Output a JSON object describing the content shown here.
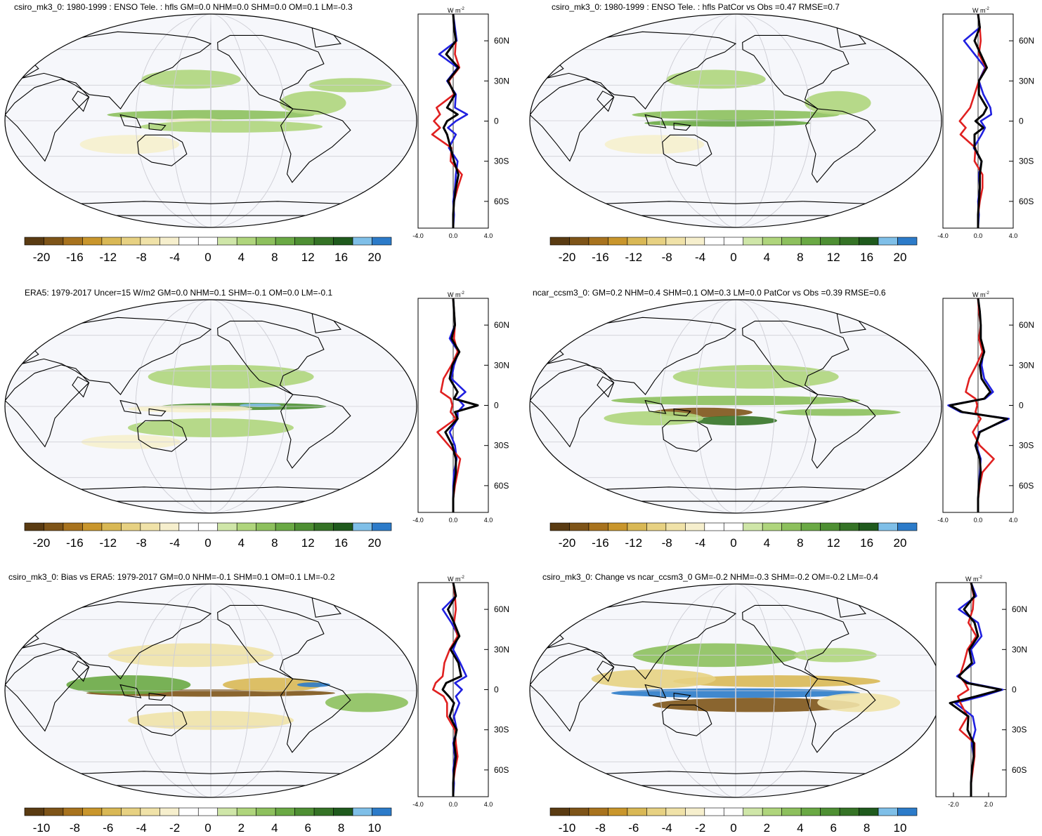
{
  "colors": {
    "scale": [
      "#5a3b12",
      "#7e5418",
      "#a8731e",
      "#c9962c",
      "#d9b855",
      "#e7d182",
      "#f0e2a8",
      "#f6efcd",
      "#f7f8fc",
      "#ffffff",
      "#cfe6a8",
      "#afd57c",
      "#8dc05d",
      "#6aa944",
      "#4e8f33",
      "#357326",
      "#1f5a1d",
      "#7fbfe8",
      "#2c7bc9"
    ],
    "ocean": "#f6f7fb",
    "grid": "#cfcfd6",
    "zonal_model": "#2020e0",
    "zonal_obs": "#e02020",
    "zonal_diff": "#000000"
  },
  "zonal_axis": {
    "unit_label": "W m",
    "unit_exp": "-2",
    "lat_ticks": [
      "60N",
      "30N",
      "0",
      "30S",
      "60S"
    ]
  },
  "panels": [
    {
      "title": "csiro_mk3_0: 1980-1999 : ENSO Tele. : hfls GM=0.0 NHM=0.0 SHM=0.0 OM=0.1 LM=-0.3",
      "colorbar_ticks": [
        "-20",
        "-16",
        "-12",
        "-8",
        "-4",
        "0",
        "4",
        "8",
        "12",
        "16",
        "20"
      ],
      "chart_data": {
        "type": "line",
        "xlabel": "W m-2",
        "xlim": [
          -4,
          4
        ],
        "x_ticks": [
          "-4.0",
          "0.0",
          "4.0"
        ],
        "ylim": [
          -80,
          80
        ],
        "lat": [
          80,
          70,
          60,
          50,
          40,
          30,
          20,
          10,
          5,
          0,
          -5,
          -10,
          -20,
          -30,
          -40,
          -50,
          -60,
          -70,
          -80
        ],
        "series": [
          {
            "values": [
              0,
              0.2,
              0.4,
              -1.6,
              0.5,
              -0.7,
              0.3,
              0.2,
              1.6,
              0.3,
              -0.6,
              0.3,
              -0.5,
              0.5,
              0.3,
              0.2,
              0,
              0.1,
              0
            ]
          },
          {
            "values": [
              0,
              0.1,
              0.3,
              0.2,
              0.7,
              -0.5,
              0.1,
              -1.9,
              -1.5,
              -2.2,
              -1.5,
              -2.4,
              -0.2,
              -0.3,
              1.0,
              0.5,
              0.1,
              0,
              0
            ]
          },
          {
            "values": [
              0,
              0.1,
              0.3,
              -0.8,
              0.6,
              -0.6,
              0.2,
              -0.7,
              0.5,
              -0.7,
              -1.1,
              -0.7,
              -0.3,
              0.1,
              0.6,
              0.3,
              0.1,
              0,
              0
            ]
          }
        ]
      }
    },
    {
      "title": "csiro_mk3_0: 1980-1999 : ENSO Tele. : hfls PatCor vs Obs =0.47 RMSE=0.7",
      "colorbar_ticks": [
        "-20",
        "-16",
        "-12",
        "-8",
        "-4",
        "0",
        "4",
        "8",
        "12",
        "16",
        "20"
      ],
      "chart_data": {
        "type": "line",
        "xlabel": "W m-2",
        "xlim": [
          -4,
          4
        ],
        "x_ticks": [
          "-4.0",
          "0.0",
          "4.0"
        ],
        "ylim": [
          -80,
          80
        ],
        "lat": [
          80,
          70,
          60,
          50,
          40,
          30,
          20,
          10,
          5,
          0,
          -5,
          -10,
          -20,
          -30,
          -40,
          -50,
          -60,
          -70,
          -80
        ],
        "series": [
          {
            "values": [
              0,
              0.2,
              -1.6,
              -0.4,
              0.8,
              0.1,
              0.6,
              1.4,
              1.5,
              0.3,
              0.8,
              0.4,
              -0.5,
              0.4,
              0.1,
              0.2,
              0,
              0.1,
              0
            ]
          },
          {
            "values": [
              0,
              0.2,
              0.3,
              0.1,
              0.9,
              0.1,
              -0.4,
              -0.9,
              -1.5,
              -2.1,
              -1.4,
              -2.0,
              -0.3,
              -0.4,
              0.5,
              0.5,
              0.2,
              0,
              0
            ]
          },
          {
            "values": [
              0,
              0.2,
              -0.4,
              0.3,
              1.0,
              0.1,
              0.1,
              1.0,
              0.6,
              -0.3,
              0.6,
              -0.4,
              -0.4,
              0.4,
              0.2,
              0.2,
              0.1,
              0,
              0
            ]
          }
        ]
      }
    },
    {
      "title": "ERA5: 1979-2017 Uncer=15 W/m2 GM=0.0 NHM=0.1 SHM=-0.1 OM=0.0 LM=-0.1",
      "colorbar_ticks": [
        "-20",
        "-16",
        "-12",
        "-8",
        "-4",
        "0",
        "4",
        "8",
        "12",
        "16",
        "20"
      ],
      "chart_data": {
        "type": "line",
        "xlabel": "W m-2",
        "xlim": [
          -4,
          4
        ],
        "x_ticks": [
          "-4.0",
          "0.0",
          "4.0"
        ],
        "ylim": [
          -80,
          80
        ],
        "lat": [
          80,
          70,
          60,
          50,
          40,
          30,
          20,
          10,
          5,
          0,
          -5,
          -10,
          -20,
          -30,
          -40,
          -50,
          -60,
          -70,
          -80
        ],
        "series": [
          {
            "values": [
              0,
              0.1,
              0.2,
              -0.4,
              0.6,
              0.1,
              -0.2,
              1.4,
              0.5,
              1.2,
              0.5,
              0.5,
              -0.4,
              0.2,
              0.4,
              0.1,
              0,
              0,
              0
            ]
          },
          {
            "values": [
              0,
              0.1,
              0.2,
              0.1,
              0.5,
              -0.2,
              -1.1,
              -1.4,
              -0.3,
              -0.1,
              -0.3,
              0.3,
              -1.8,
              -0.5,
              0.8,
              0.5,
              0.2,
              0,
              0
            ]
          },
          {
            "values": [
              0,
              0.1,
              0.2,
              -0.2,
              0.7,
              -0.1,
              -0.4,
              0.5,
              0.1,
              2.8,
              0.2,
              0.5,
              -0.9,
              -0.1,
              0.3,
              0.3,
              0.1,
              0,
              0
            ]
          }
        ]
      }
    },
    {
      "title": "ncar_ccsm3_0: GM=0.2 NHM=0.4 SHM=0.1 OM=0.3 LM=0.0 PatCor vs Obs =0.39 RMSE=0.6",
      "colorbar_ticks": [
        "-20",
        "-16",
        "-12",
        "-8",
        "-4",
        "0",
        "4",
        "8",
        "12",
        "16",
        "20"
      ],
      "chart_data": {
        "type": "line",
        "xlabel": "W m-2",
        "xlim": [
          -4,
          4
        ],
        "x_ticks": [
          "-4.0",
          "0.0",
          "4.0"
        ],
        "ylim": [
          -80,
          80
        ],
        "lat": [
          80,
          70,
          60,
          50,
          40,
          30,
          20,
          10,
          5,
          0,
          -5,
          -10,
          -20,
          -30,
          -40,
          -50,
          -60,
          -70,
          -80
        ],
        "series": [
          {
            "values": [
              0,
              0.2,
              0.3,
              0.3,
              0.6,
              0.4,
              0.7,
              1.7,
              0.8,
              -3.4,
              -2.0,
              3.5,
              0.1,
              -0.2,
              0.3,
              0.2,
              0.1,
              0,
              0
            ]
          },
          {
            "values": [
              0,
              0.1,
              0.3,
              0.1,
              0.5,
              -0.2,
              -1.0,
              -1.4,
              -0.3,
              -0.1,
              -0.3,
              0.3,
              -0.6,
              0.2,
              1.8,
              0.5,
              0.2,
              0,
              0
            ]
          },
          {
            "values": [
              0,
              0.2,
              0.3,
              0.3,
              0.7,
              0.2,
              0.4,
              1.4,
              0.7,
              -3.2,
              -1.8,
              3.3,
              0.2,
              -0.3,
              0.2,
              0.3,
              0.1,
              0,
              0
            ]
          }
        ]
      }
    },
    {
      "title": "csiro_mk3_0: Bias vs ERA5: 1979-2017 GM=0.0 NHM=-0.1 SHM=0.1 OM=0.1 LM=-0.2",
      "colorbar_ticks": [
        "-10",
        "-8",
        "-6",
        "-4",
        "-2",
        "0",
        "2",
        "4",
        "6",
        "8",
        "10"
      ],
      "chart_data": {
        "type": "line",
        "xlabel": "W m-2",
        "xlim": [
          -4,
          4
        ],
        "x_ticks": [
          "-4.0",
          "0.0",
          "4.0"
        ],
        "ylim": [
          -80,
          80
        ],
        "lat": [
          80,
          70,
          60,
          50,
          40,
          30,
          20,
          10,
          5,
          0,
          -5,
          -10,
          -20,
          -30,
          -40,
          -50,
          -60,
          -70,
          -80
        ],
        "series": [
          {
            "values": [
              0,
              0.3,
              -1.2,
              -0.2,
              0.6,
              0.0,
              0.8,
              1.5,
              0.2,
              1.0,
              0.3,
              0.7,
              0.1,
              0.4,
              0.0,
              0.2,
              0,
              0.1,
              0
            ]
          },
          {
            "values": [
              0,
              0.2,
              0.3,
              0.1,
              0.5,
              -0.4,
              -1.0,
              -1.2,
              -2.0,
              -2.3,
              -1.1,
              -0.7,
              -0.7,
              0.2,
              0.3,
              0.5,
              0.2,
              0,
              0
            ]
          },
          {
            "values": [
              0,
              0.3,
              -0.6,
              0.1,
              0.7,
              -0.3,
              0.6,
              0.9,
              -0.8,
              -1.2,
              -0.5,
              0.1,
              -0.4,
              0.4,
              0.1,
              0.3,
              0.1,
              0,
              0
            ]
          }
        ]
      }
    },
    {
      "title": "csiro_mk3_0: Change vs ncar_ccsm3_0 GM=-0.2 NHM=-0.3 SHM=-0.2 OM=-0.2 LM=-0.4",
      "colorbar_ticks": [
        "-10",
        "-8",
        "-6",
        "-4",
        "-2",
        "0",
        "2",
        "4",
        "6",
        "8",
        "10"
      ],
      "chart_data": {
        "type": "line",
        "xlabel": "W m-2",
        "xlim": [
          -4,
          4
        ],
        "x_ticks": [
          "-2.0",
          "2.0"
        ],
        "ylim": [
          -80,
          80
        ],
        "lat": [
          80,
          70,
          60,
          50,
          40,
          30,
          20,
          10,
          5,
          0,
          -5,
          -10,
          -20,
          -30,
          -40,
          -50,
          -60,
          -70,
          -80
        ],
        "series": [
          {
            "values": [
              0,
              0.6,
              -1.4,
              0.8,
              1.2,
              0.0,
              0.4,
              -1.6,
              -0.2,
              3.6,
              1.2,
              -1.8,
              0.2,
              0.5,
              0.1,
              0.3,
              0.1,
              0,
              0
            ]
          },
          {
            "values": [
              0,
              0.3,
              0.2,
              -0.3,
              0.6,
              -0.4,
              -0.8,
              -1.3,
              -0.7,
              -0.3,
              -1.5,
              -1.2,
              -0.4,
              -1.3,
              0.4,
              0.4,
              0.2,
              0,
              0
            ]
          },
          {
            "values": [
              0,
              0.4,
              -0.8,
              0.4,
              0.8,
              -0.2,
              0.1,
              -1.4,
              -0.5,
              3.4,
              0.6,
              -2.4,
              -0.3,
              -0.4,
              0.3,
              0.3,
              0.1,
              0,
              0
            ]
          }
        ]
      }
    }
  ]
}
